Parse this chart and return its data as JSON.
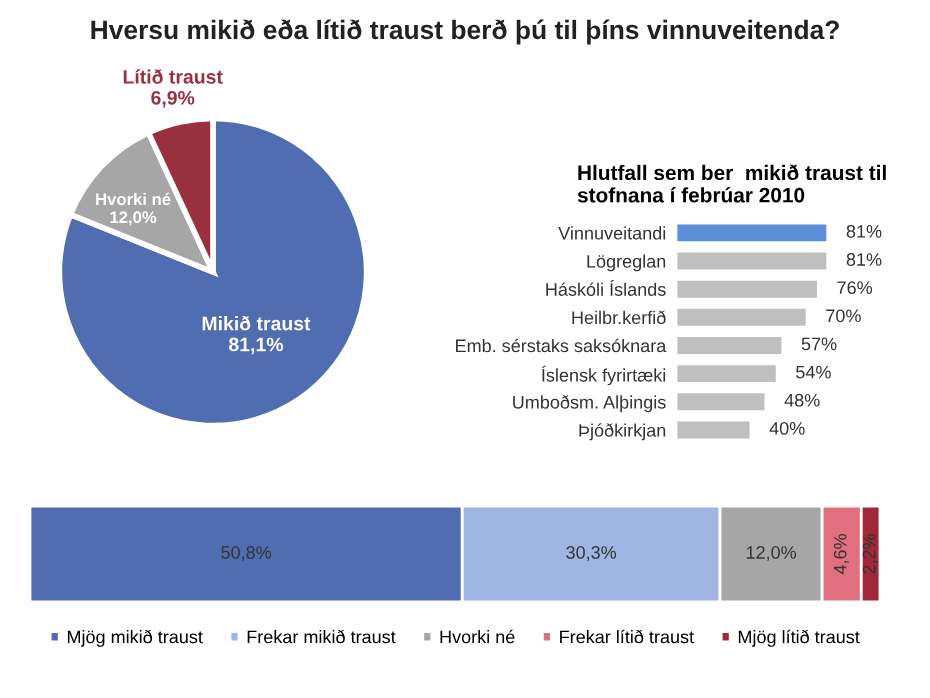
{
  "chart_data": [
    {
      "type": "pie",
      "title": "Hversu mikið eða lítið traust berð þú til þíns vinnuveitenda?",
      "categories": [
        "Mikið traust",
        "Hvorki né",
        "Lítið traust"
      ],
      "values": [
        81.1,
        12.0,
        6.9
      ],
      "value_labels": [
        "81,1%",
        "12,0%",
        "6,9%"
      ],
      "colors": [
        "#4f6db0",
        "#a6a6a6",
        "#983040"
      ]
    },
    {
      "type": "bar",
      "orientation": "horizontal",
      "title": "Hlutfall sem ber  mikið traust til stofnana í febrúar 2010",
      "categories": [
        "Vinnuveitandi",
        "Lögreglan",
        "Háskóli Íslands",
        "Heilbr.kerfið",
        "Emb. sérstaks saksóknara",
        "Íslensk fyrirtæki",
        "Umboðsm. Alþingis",
        "Þjóðkirkjan"
      ],
      "values": [
        81,
        81,
        76,
        70,
        57,
        54,
        48,
        40
      ],
      "value_labels": [
        "81%",
        "81%",
        "76%",
        "70%",
        "57%",
        "54%",
        "48%",
        "40%"
      ],
      "colors": [
        "#5b8fd9",
        "#bfbfbf",
        "#bfbfbf",
        "#bfbfbf",
        "#bfbfbf",
        "#bfbfbf",
        "#bfbfbf",
        "#bfbfbf"
      ]
    },
    {
      "type": "bar",
      "orientation": "horizontal",
      "stacked": true,
      "legend": "bottom",
      "categories": [
        null
      ],
      "series": [
        {
          "name": "Mjög mikið traust",
          "color": "#4f6db0",
          "values": [
            50.8
          ],
          "value_labels": [
            "50,8%"
          ]
        },
        {
          "name": "Frekar mikið traust",
          "color": "#9fb5e2",
          "values": [
            30.3
          ],
          "value_labels": [
            "30,3%"
          ]
        },
        {
          "name": "Hvorki né",
          "color": "#a6a6a6",
          "values": [
            12.0
          ],
          "value_labels": [
            "12,0%"
          ]
        },
        {
          "name": "Frekar lítið traust",
          "color": "#e07080",
          "values": [
            4.6
          ],
          "value_labels": [
            "4,6%"
          ]
        },
        {
          "name": "Mjög lítið traust",
          "color": "#a02838",
          "values": [
            2.2
          ],
          "value_labels": [
            "2,2%"
          ]
        }
      ]
    }
  ]
}
